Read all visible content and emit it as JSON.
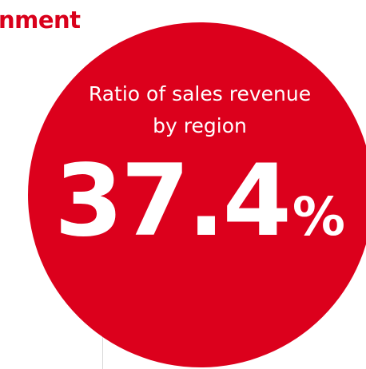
{
  "heading": "nment",
  "stat": {
    "label": "Ratio of sales revenue by region",
    "value": 37.4,
    "unit": "%"
  }
}
